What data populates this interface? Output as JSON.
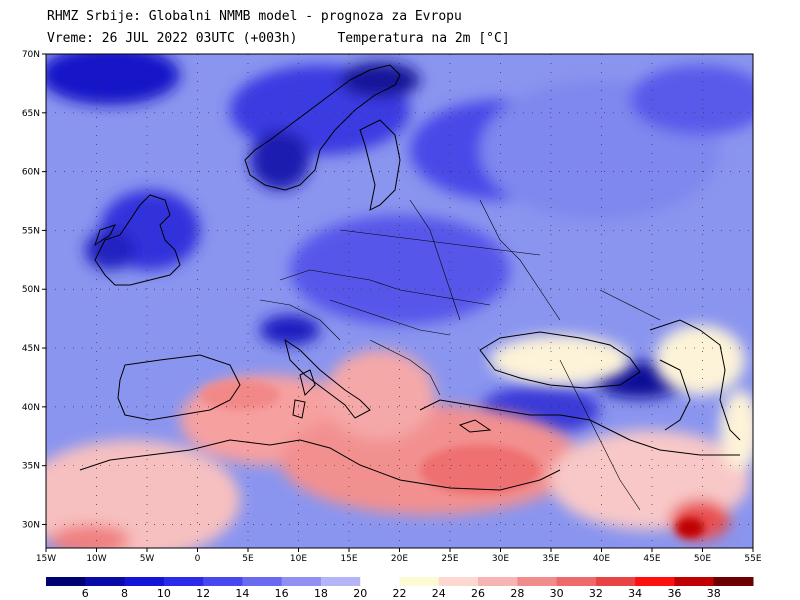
{
  "header": {
    "line1": "RHMZ Srbije: Globalni NMMB model - prognoza za Evropu",
    "valid_time": "Vreme: 26 JUL 2022 03UTC (+003h)",
    "parameter": "Temperatura na 2m [°C]"
  },
  "map": {
    "lon_range": [
      -15,
      55
    ],
    "lat_range": [
      28,
      70
    ],
    "lat_ticks": [
      {
        "value": 30,
        "label": "30N"
      },
      {
        "value": 35,
        "label": "35N"
      },
      {
        "value": 40,
        "label": "40N"
      },
      {
        "value": 45,
        "label": "45N"
      },
      {
        "value": 50,
        "label": "50N"
      },
      {
        "value": 55,
        "label": "55N"
      },
      {
        "value": 60,
        "label": "60N"
      },
      {
        "value": 65,
        "label": "65N"
      },
      {
        "value": 70,
        "label": "70N"
      }
    ],
    "lon_ticks": [
      {
        "value": -15,
        "label": "15W"
      },
      {
        "value": -10,
        "label": "10W"
      },
      {
        "value": -5,
        "label": "5W"
      },
      {
        "value": 0,
        "label": "0"
      },
      {
        "value": 5,
        "label": "5E"
      },
      {
        "value": 10,
        "label": "10E"
      },
      {
        "value": 15,
        "label": "15E"
      },
      {
        "value": 20,
        "label": "20E"
      },
      {
        "value": 25,
        "label": "25E"
      },
      {
        "value": 30,
        "label": "30E"
      },
      {
        "value": 35,
        "label": "35E"
      },
      {
        "value": 40,
        "label": "40E"
      },
      {
        "value": 45,
        "label": "45E"
      },
      {
        "value": 50,
        "label": "50E"
      },
      {
        "value": 55,
        "label": "55E"
      }
    ],
    "background_color": "#8a95ef"
  },
  "legend": {
    "colors": [
      "#000070",
      "#0a0aa8",
      "#1414d6",
      "#2a2ae8",
      "#4848ee",
      "#6a6af0",
      "#9090f2",
      "#b4b4f6",
      "#ffffff",
      "#fdfad6",
      "#fcd8d0",
      "#f7b4b4",
      "#f08c8c",
      "#ee6a6a",
      "#e84444",
      "#ff1010",
      "#c00000",
      "#6a0000"
    ],
    "labels": [
      "6",
      "8",
      "10",
      "12",
      "14",
      "16",
      "18",
      "20",
      "22",
      "24",
      "26",
      "28",
      "30",
      "32",
      "34",
      "36",
      "38"
    ]
  }
}
